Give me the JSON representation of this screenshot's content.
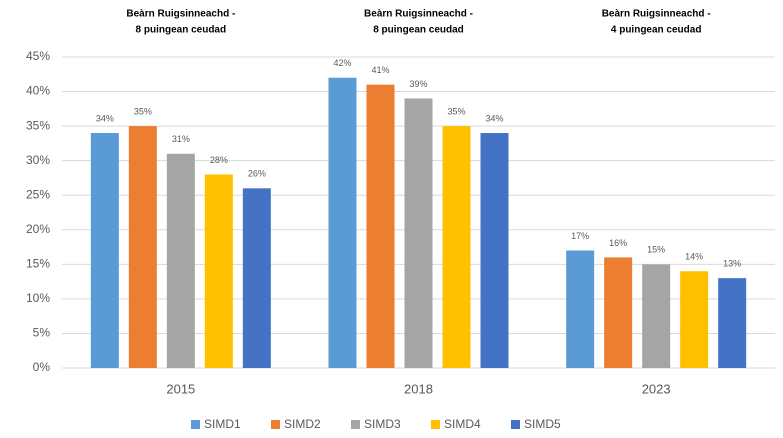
{
  "chart_data": {
    "type": "bar",
    "categories": [
      "2015",
      "2018",
      "2023"
    ],
    "annotations": [
      {
        "lines": [
          "Beàrn Ruigsinneachd -",
          "8 puingean ceudad"
        ]
      },
      {
        "lines": [
          "Beàrn Ruigsinneachd -",
          "8 puingean ceudad"
        ]
      },
      {
        "lines": [
          "Beàrn Ruigsinneachd -",
          "4 puingean ceudad"
        ]
      }
    ],
    "series": [
      {
        "name": "SIMD1",
        "color": "#5b9bd5",
        "values": [
          34,
          42,
          17
        ],
        "value_labels": [
          "34%",
          "42%",
          "17%"
        ]
      },
      {
        "name": "SIMD2",
        "color": "#ed7d31",
        "values": [
          35,
          41,
          16
        ],
        "value_labels": [
          "35%",
          "41%",
          "16%"
        ]
      },
      {
        "name": "SIMD3",
        "color": "#a5a5a5",
        "values": [
          31,
          39,
          15
        ],
        "value_labels": [
          "31%",
          "39%",
          "15%"
        ]
      },
      {
        "name": "SIMD4",
        "color": "#ffc000",
        "values": [
          28,
          35,
          14
        ],
        "value_labels": [
          "28%",
          "35%",
          "14%"
        ]
      },
      {
        "name": "SIMD5",
        "color": "#4472c4",
        "values": [
          26,
          34,
          13
        ],
        "value_labels": [
          "26%",
          "34%",
          "13%"
        ]
      }
    ],
    "ylim": [
      0,
      45
    ],
    "yticks": [
      {
        "value": 0,
        "label": "0%"
      },
      {
        "value": 5,
        "label": "5%"
      },
      {
        "value": 10,
        "label": "10%"
      },
      {
        "value": 15,
        "label": "15%"
      },
      {
        "value": 20,
        "label": "20%"
      },
      {
        "value": 25,
        "label": "25%"
      },
      {
        "value": 30,
        "label": "30%"
      },
      {
        "value": 35,
        "label": "35%"
      },
      {
        "value": 40,
        "label": "40%"
      },
      {
        "value": 45,
        "label": "45%"
      }
    ],
    "grid": true,
    "legend": "bottom"
  }
}
